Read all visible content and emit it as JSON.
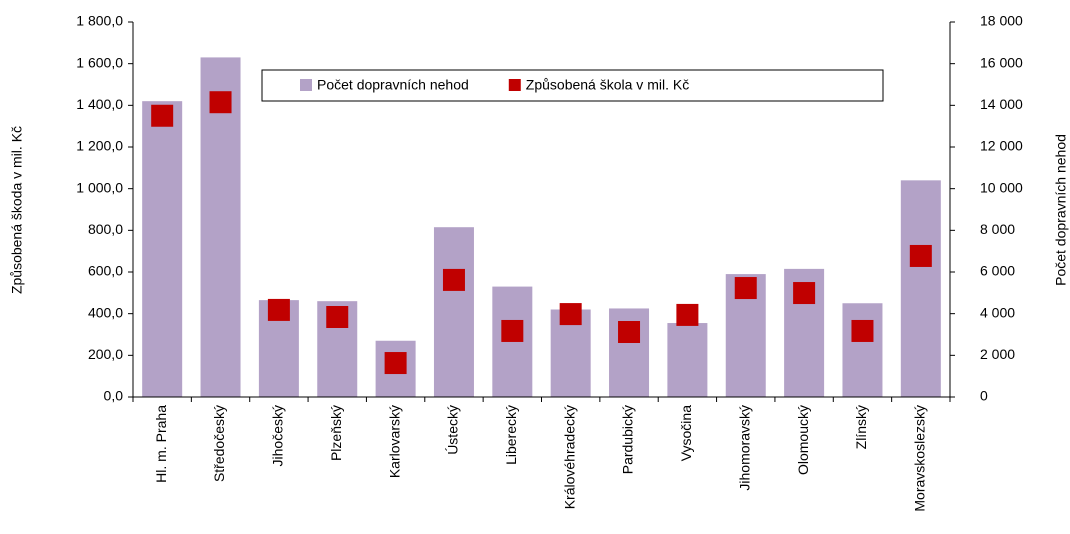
{
  "chart_data": {
    "type": "bar",
    "ylabel": "Způsobená škoda v mil. Kč",
    "y2label": "Počet dopravních nehod",
    "categories": [
      "Hl. m. Praha",
      "Středočeský",
      "Jihočeský",
      "Plzeňský",
      "Karlovarský",
      "Ústecký",
      "Liberecký",
      "Královéhradecký",
      "Pardubický",
      "Vysočina",
      "Jihomoravský",
      "Olomoucký",
      "Zlínský",
      "Moravskoslezský"
    ],
    "series": [
      {
        "name": "Počet dopravních nehod",
        "type": "bar",
        "axis": "y2",
        "color": "#b3a2c7",
        "values": [
          14200,
          16300,
          4650,
          4600,
          2700,
          8150,
          5300,
          4200,
          4250,
          3550,
          5900,
          6150,
          4500,
          10400
        ]
      },
      {
        "name": "Způsobená škola v mil. Kč",
        "type": "scatter",
        "axis": "y",
        "color": "#c00000",
        "values": [
          1350,
          1415,
          418,
          384,
          163,
          562,
          317,
          398,
          312,
          394,
          523,
          499,
          317,
          677
        ]
      }
    ],
    "ylim": [
      0,
      1800
    ],
    "yticks": [
      {
        "value": 0,
        "label": "0,0"
      },
      {
        "value": 200,
        "label": "200,0"
      },
      {
        "value": 400,
        "label": "400,0"
      },
      {
        "value": 600,
        "label": "600,0"
      },
      {
        "value": 800,
        "label": "800,0"
      },
      {
        "value": 1000,
        "label": "1 000,0"
      },
      {
        "value": 1200,
        "label": "1 200,0"
      },
      {
        "value": 1400,
        "label": "1 400,0"
      },
      {
        "value": 1600,
        "label": "1 600,0"
      },
      {
        "value": 1800,
        "label": "1 800,0"
      }
    ],
    "y2lim": [
      0,
      18000
    ],
    "y2ticks": [
      0,
      {
        "value": 2000,
        "label": "2 000"
      },
      {
        "value": 4000,
        "label": "4 000"
      },
      {
        "value": 6000,
        "label": "6 000"
      },
      {
        "value": 8000,
        "label": "8 000"
      },
      {
        "value": 10000,
        "label": "10 000"
      },
      {
        "value": 12000,
        "label": "12 000"
      },
      {
        "value": 14000,
        "label": "14 000"
      },
      {
        "value": 16000,
        "label": "16 000"
      },
      {
        "value": 18000,
        "label": "18 000"
      }
    ],
    "grid": false,
    "legend": "top"
  }
}
